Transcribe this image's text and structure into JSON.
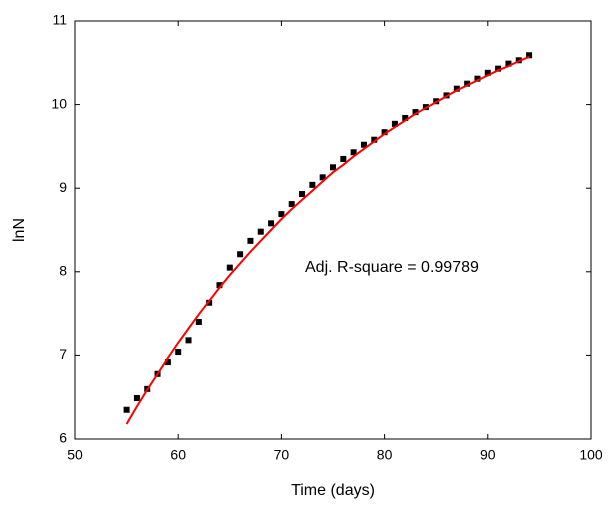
{
  "chart_data": {
    "type": "scatter",
    "x_label": "Time (days)",
    "y_label": "lnN",
    "annotation": "Adj. R-square = 0.99789",
    "x": [
      55,
      56,
      57,
      58,
      59,
      60,
      61,
      62,
      63,
      64,
      65,
      66,
      67,
      68,
      69,
      70,
      71,
      72,
      73,
      74,
      75,
      76,
      77,
      78,
      79,
      80,
      81,
      82,
      83,
      84,
      85,
      86,
      87,
      88,
      89,
      90,
      91,
      92,
      93,
      94
    ],
    "series": [
      {
        "color": "#000000",
        "marker": "square",
        "values": [
          6.35,
          6.49,
          6.6,
          6.78,
          6.92,
          7.04,
          7.18,
          7.4,
          7.63,
          7.84,
          8.05,
          8.21,
          8.37,
          8.48,
          8.58,
          8.69,
          8.81,
          8.93,
          9.04,
          9.13,
          9.25,
          9.35,
          9.43,
          9.52,
          9.58,
          9.67,
          9.77,
          9.84,
          9.91,
          9.97,
          10.04,
          10.11,
          10.19,
          10.25,
          10.31,
          10.38,
          10.43,
          10.49,
          10.53,
          10.59
        ]
      },
      {
        "color": "#ff0000",
        "marker": "line",
        "values": [
          6.18,
          6.39,
          6.59,
          6.78,
          6.97,
          7.15,
          7.32,
          7.49,
          7.65,
          7.81,
          7.96,
          8.1,
          8.24,
          8.37,
          8.5,
          8.63,
          8.75,
          8.86,
          8.97,
          9.08,
          9.19,
          9.28,
          9.38,
          9.47,
          9.56,
          9.65,
          9.73,
          9.81,
          9.89,
          9.96,
          10.03,
          10.1,
          10.17,
          10.23,
          10.29,
          10.35,
          10.41,
          10.46,
          10.52,
          10.57
        ]
      }
    ],
    "xlim": [
      50,
      100
    ],
    "ylim": [
      6,
      11
    ],
    "xticks": [
      50,
      60,
      70,
      80,
      90,
      100
    ],
    "yticks": [
      6,
      7,
      8,
      9,
      10,
      11
    ],
    "grid": false
  }
}
